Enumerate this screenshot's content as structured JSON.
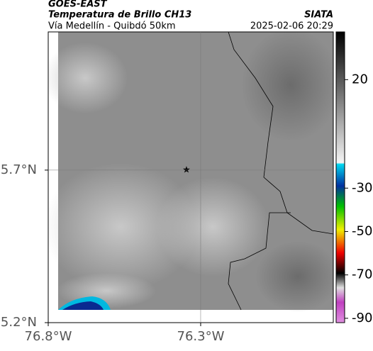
{
  "header": {
    "title": "GOES-EAST",
    "subtitle": "Temperatura de Brillo CH13",
    "source": "SIATA",
    "location": "Vía Medellín - Quibdó 50km",
    "timestamp": "2025-02-06 20:29"
  },
  "map": {
    "lonlim": [
      -76.8,
      -75.865
    ],
    "latlim": [
      5.2,
      6.153
    ],
    "lonticks": [
      {
        "value": -76.8,
        "label": "76.8°W"
      },
      {
        "value": -76.3,
        "label": "76.3°W"
      }
    ],
    "latticks": [
      {
        "value": 5.2,
        "label": "5.2°N"
      },
      {
        "value": 5.7,
        "label": "5.7°N"
      }
    ],
    "grid": true
  },
  "colorbar": {
    "lim": [
      -92,
      42
    ],
    "ticks": [
      20,
      -30,
      -50,
      -70,
      -90
    ]
  }
}
